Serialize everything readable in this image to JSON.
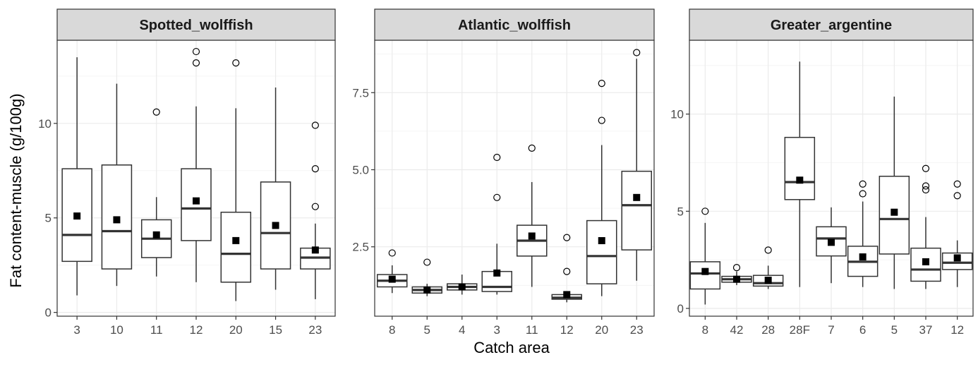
{
  "chart_data": {
    "type": "boxplot",
    "ylabel": "Fat content-muscle (g/100g)",
    "xlabel": "Catch area",
    "colors": {
      "strip_fill": "#d9d9d9",
      "box_line": "#333333",
      "mean_marker": "#000000",
      "outlier": "#000000",
      "panel_border": "#333333",
      "grid": "#ebebeb"
    },
    "panels": [
      {
        "title": "Spotted_wolffish",
        "ylim": [
          -0.2,
          14.4
        ],
        "yticks": [
          0,
          5,
          10
        ],
        "ytick_labels": [
          "0",
          "5",
          "10"
        ],
        "groups": [
          {
            "label": "3",
            "min": 0.9,
            "q1": 2.7,
            "median": 4.1,
            "q3": 7.6,
            "max": 13.5,
            "mean": 5.1,
            "outliers": []
          },
          {
            "label": "10",
            "min": 1.4,
            "q1": 2.3,
            "median": 4.3,
            "q3": 7.8,
            "max": 12.1,
            "mean": 4.9,
            "outliers": []
          },
          {
            "label": "11",
            "min": 1.9,
            "q1": 2.9,
            "median": 3.9,
            "q3": 4.9,
            "max": 6.1,
            "mean": 4.1,
            "outliers": [
              10.6
            ]
          },
          {
            "label": "12",
            "min": 1.6,
            "q1": 3.8,
            "median": 5.5,
            "q3": 7.6,
            "max": 10.9,
            "mean": 5.9,
            "outliers": [
              13.2,
              13.8
            ]
          },
          {
            "label": "20",
            "min": 0.6,
            "q1": 1.6,
            "median": 3.1,
            "q3": 5.3,
            "max": 10.8,
            "mean": 3.8,
            "outliers": [
              13.2
            ]
          },
          {
            "label": "15",
            "min": 1.2,
            "q1": 2.3,
            "median": 4.2,
            "q3": 6.9,
            "max": 11.9,
            "mean": 4.6,
            "outliers": []
          },
          {
            "label": "23",
            "min": 0.7,
            "q1": 2.3,
            "median": 2.9,
            "q3": 3.4,
            "max": 4.7,
            "mean": 3.3,
            "outliers": [
              5.6,
              7.6,
              9.9
            ]
          }
        ]
      },
      {
        "title": "Atlantic_wolffish",
        "ylim": [
          0.25,
          9.2
        ],
        "yticks": [
          2.5,
          5.0,
          7.5
        ],
        "ytick_labels": [
          "2.5",
          "5.0",
          "7.5"
        ],
        "groups": [
          {
            "label": "8",
            "min": 1.0,
            "q1": 1.2,
            "median": 1.4,
            "q3": 1.6,
            "max": 1.9,
            "mean": 1.45,
            "outliers": [
              2.3
            ]
          },
          {
            "label": "5",
            "min": 0.9,
            "q1": 1.0,
            "median": 1.1,
            "q3": 1.2,
            "max": 1.3,
            "mean": 1.1,
            "outliers": [
              2.0
            ]
          },
          {
            "label": "4",
            "min": 0.95,
            "q1": 1.1,
            "median": 1.2,
            "q3": 1.3,
            "max": 1.6,
            "mean": 1.2,
            "outliers": []
          },
          {
            "label": "3",
            "min": 0.95,
            "q1": 1.05,
            "median": 1.2,
            "q3": 1.7,
            "max": 2.6,
            "mean": 1.65,
            "outliers": [
              4.1,
              5.4
            ]
          },
          {
            "label": "11",
            "min": 1.2,
            "q1": 2.2,
            "median": 2.7,
            "q3": 3.2,
            "max": 4.6,
            "mean": 2.85,
            "outliers": [
              5.7
            ]
          },
          {
            "label": "12",
            "min": 0.7,
            "q1": 0.8,
            "median": 0.85,
            "q3": 0.95,
            "max": 1.0,
            "mean": 0.95,
            "outliers": [
              1.7,
              2.8
            ]
          },
          {
            "label": "20",
            "min": 0.9,
            "q1": 1.3,
            "median": 2.2,
            "q3": 3.35,
            "max": 5.8,
            "mean": 2.7,
            "outliers": [
              6.6,
              7.8
            ]
          },
          {
            "label": "23",
            "min": 1.4,
            "q1": 2.4,
            "median": 3.85,
            "q3": 4.95,
            "max": 8.6,
            "mean": 4.1,
            "outliers": [
              8.8
            ]
          }
        ]
      },
      {
        "title": "Greater_argentine",
        "ylim": [
          -0.4,
          13.8
        ],
        "yticks": [
          0,
          5,
          10
        ],
        "ytick_labels": [
          "0",
          "5",
          "10"
        ],
        "groups": [
          {
            "label": "8",
            "min": 0.2,
            "q1": 1.0,
            "median": 1.8,
            "q3": 2.4,
            "max": 4.4,
            "mean": 1.9,
            "outliers": [
              5.0
            ]
          },
          {
            "label": "42",
            "min": 1.2,
            "q1": 1.35,
            "median": 1.5,
            "q3": 1.65,
            "max": 1.9,
            "mean": 1.5,
            "outliers": [
              2.1
            ]
          },
          {
            "label": "28",
            "min": 1.0,
            "q1": 1.15,
            "median": 1.3,
            "q3": 1.7,
            "max": 2.2,
            "mean": 1.45,
            "outliers": [
              3.0
            ]
          },
          {
            "label": "28F",
            "min": 1.1,
            "q1": 5.6,
            "median": 6.5,
            "q3": 8.8,
            "max": 12.7,
            "mean": 6.6,
            "outliers": []
          },
          {
            "label": "7",
            "min": 1.3,
            "q1": 2.7,
            "median": 3.6,
            "q3": 4.2,
            "max": 5.2,
            "mean": 3.4,
            "outliers": []
          },
          {
            "label": "6",
            "min": 1.1,
            "q1": 1.65,
            "median": 2.4,
            "q3": 3.2,
            "max": 5.5,
            "mean": 2.65,
            "outliers": [
              5.9,
              6.4
            ]
          },
          {
            "label": "5",
            "min": 1.0,
            "q1": 2.8,
            "median": 4.6,
            "q3": 6.8,
            "max": 10.9,
            "mean": 4.95,
            "outliers": []
          },
          {
            "label": "37",
            "min": 1.0,
            "q1": 1.4,
            "median": 2.0,
            "q3": 3.1,
            "max": 4.7,
            "mean": 2.4,
            "outliers": [
              6.1,
              6.3,
              7.2
            ]
          },
          {
            "label": "12",
            "min": 1.1,
            "q1": 2.0,
            "median": 2.35,
            "q3": 2.85,
            "max": 3.5,
            "mean": 2.6,
            "outliers": [
              5.8,
              6.4
            ]
          }
        ]
      }
    ]
  }
}
